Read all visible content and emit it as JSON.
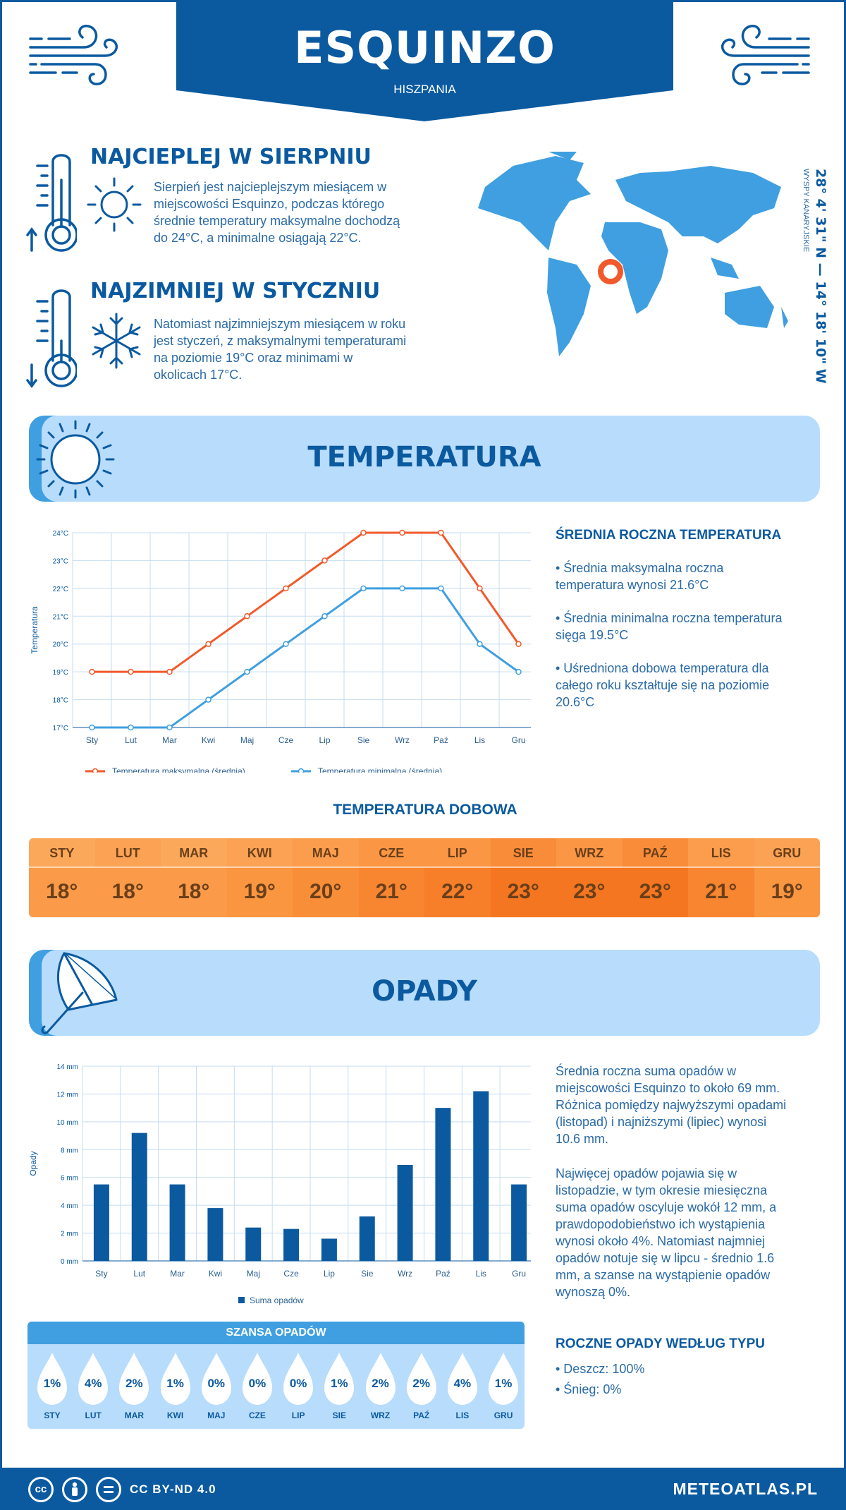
{
  "header": {
    "city": "ESQUINZO",
    "country": "HISZPANIA"
  },
  "hottest": {
    "title": "NAJCIEPLEJ W SIERPNIU",
    "lines": [
      "Sierpień jest najcieplejszym miesiącem w",
      "miejscowości Esquinzo, podczas którego",
      "średnie temperatury maksymalne dochodzą",
      "do 24°C, a minimalne osiągają 22°C."
    ]
  },
  "coldest": {
    "title": "NAJZIMNIEJ W STYCZNIU",
    "lines": [
      "Natomiast najzimniejszym miesiącem w roku",
      "jest styczeń, z maksymalnymi temperaturami",
      "na poziomie 19°C oraz minimami w",
      "okolicach 17°C."
    ]
  },
  "location": {
    "coords": "28° 4' 31\" N — 14° 18' 10\" W",
    "region": "WYSPY KANARYJSKIE"
  },
  "temperature_section": {
    "title": "TEMPERATURA",
    "side_title": "ŚREDNIA ROCZNA TEMPERATURA",
    "side_lines": [
      "• Średnia maksymalna roczna",
      "temperatura wynosi 21.6°C",
      "",
      "• Średnia minimalna roczna temperatura",
      "sięga 19.5°C",
      "",
      "• Uśredniona dobowa temperatura dla",
      "całego roku kształtuje się na poziomie",
      "20.6°C"
    ]
  },
  "chart_data": [
    {
      "type": "line",
      "categories": [
        "Sty",
        "Lut",
        "Mar",
        "Kwi",
        "Maj",
        "Cze",
        "Lip",
        "Sie",
        "Wrz",
        "Paź",
        "Lis",
        "Gru"
      ],
      "series": [
        {
          "name": "Temperatura maksymalna (średnia)",
          "color": "#f2592a",
          "values": [
            19,
            19,
            19,
            20,
            21,
            22,
            23,
            24,
            24,
            24,
            22,
            20
          ]
        },
        {
          "name": "Temperatura minimalna (średnia)",
          "color": "#3f9fe0",
          "values": [
            17,
            17,
            17,
            18,
            19,
            20,
            21,
            22,
            22,
            22,
            20,
            19
          ]
        }
      ],
      "ylabel": "Temperatura",
      "ylim": [
        17,
        24
      ],
      "yticks": [
        "17°C",
        "18°C",
        "19°C",
        "20°C",
        "21°C",
        "22°C",
        "23°C",
        "24°C"
      ],
      "grid": true,
      "legend": "bottom"
    },
    {
      "type": "bar",
      "categories": [
        "Sty",
        "Lut",
        "Mar",
        "Kwi",
        "Maj",
        "Cze",
        "Lip",
        "Sie",
        "Wrz",
        "Paź",
        "Lis",
        "Gru"
      ],
      "series": [
        {
          "name": "Suma opadów",
          "color": "#0b5aa0",
          "values": [
            5.5,
            9.2,
            5.5,
            3.8,
            2.4,
            2.3,
            1.6,
            3.2,
            6.9,
            11.0,
            12.2,
            5.5
          ]
        }
      ],
      "ylabel": "Opady",
      "ylim": [
        0,
        14
      ],
      "yticks": [
        "0 mm",
        "2 mm",
        "4 mm",
        "6 mm",
        "8 mm",
        "10 mm",
        "12 mm",
        "14 mm"
      ],
      "grid": true,
      "legend": "bottom"
    }
  ],
  "daily": {
    "title": "TEMPERATURA DOBOWA",
    "months": [
      "STY",
      "LUT",
      "MAR",
      "KWI",
      "MAJ",
      "CZE",
      "LIP",
      "SIE",
      "WRZ",
      "PAŹ",
      "LIS",
      "GRU"
    ],
    "values": [
      "18°",
      "18°",
      "18°",
      "19°",
      "20°",
      "21°",
      "22°",
      "23°",
      "23°",
      "23°",
      "21°",
      "19°"
    ],
    "head_colors": [
      "#fca85a",
      "#fba254",
      "#fca85a",
      "#fba254",
      "#fb9d4c",
      "#fb9644",
      "#fb9644",
      "#f98c38",
      "#fb9644",
      "#f98c38",
      "#fb9d4c",
      "#fba254"
    ],
    "value_colors": [
      "#fb9a48",
      "#fb9a48",
      "#fb9a48",
      "#fa9640",
      "#f98e38",
      "#f88530",
      "#f77f2a",
      "#f57620",
      "#f57620",
      "#f57620",
      "#f88530",
      "#fa9640"
    ]
  },
  "precip_section": {
    "title": "OPADY",
    "text1": [
      "Średnia roczna suma opadów w",
      "miejscowości Esquinzo to około 69 mm.",
      "Różnica pomiędzy najwyższymi opadami",
      "(listopad) i najniższymi (lipiec) wynosi",
      "10.6 mm."
    ],
    "text2": [
      "Najwięcej opadów pojawia się w",
      "listopadzie, w tym okresie miesięczna",
      "suma opadów oscyluje wokół 12 mm, a",
      "prawdopodobieństwo ich wystąpienia",
      "wynosi około 4%. Natomiast najmniej",
      "opadów notuje się w lipcu - średnio 1.6",
      "mm, a szanse na wystąpienie opadów",
      "wynoszą 0%."
    ],
    "type_title": "ROCZNE OPADY WEDŁUG TYPU",
    "types": [
      "• Deszcz: 100%",
      "• Śnieg: 0%"
    ]
  },
  "chance": {
    "title": "SZANSA OPADÓW",
    "months": [
      "STY",
      "LUT",
      "MAR",
      "KWI",
      "MAJ",
      "CZE",
      "LIP",
      "SIE",
      "WRZ",
      "PAŹ",
      "LIS",
      "GRU"
    ],
    "values": [
      "1%",
      "4%",
      "2%",
      "1%",
      "0%",
      "0%",
      "0%",
      "1%",
      "2%",
      "2%",
      "4%",
      "1%"
    ]
  },
  "footer": {
    "license": "CC BY-ND 4.0",
    "site": "METEOATLAS.PL"
  }
}
